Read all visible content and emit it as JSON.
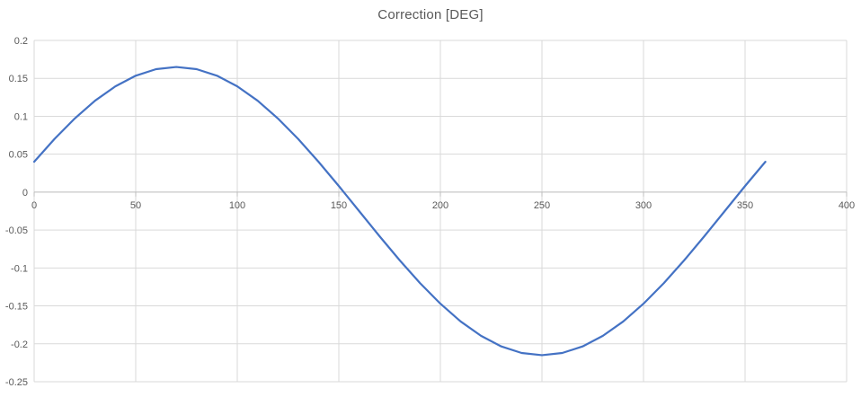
{
  "chart_data": {
    "type": "line",
    "title": "Correction [DEG]",
    "xlabel": "",
    "ylabel": "",
    "xlim": [
      0,
      400
    ],
    "ylim": [
      -0.25,
      0.2
    ],
    "x_ticks": [
      0,
      50,
      100,
      150,
      200,
      250,
      300,
      350,
      400
    ],
    "y_ticks": [
      0.2,
      0.15,
      0.1,
      0.05,
      0,
      -0.05,
      -0.1,
      -0.15,
      -0.2,
      -0.25
    ],
    "grid": true,
    "legend_position": "none",
    "series": [
      {
        "name": "Correction",
        "x": [
          0,
          10,
          20,
          30,
          40,
          50,
          60,
          70,
          80,
          90,
          100,
          110,
          120,
          130,
          140,
          150,
          160,
          170,
          180,
          190,
          200,
          210,
          220,
          230,
          240,
          250,
          260,
          270,
          280,
          290,
          300,
          310,
          320,
          330,
          340,
          350,
          360
        ],
        "y": [
          0.04,
          0.07,
          0.0971,
          0.1206,
          0.1395,
          0.1535,
          0.1621,
          0.165,
          0.1621,
          0.1535,
          0.1395,
          0.1206,
          0.0971,
          0.07,
          0.04,
          0.008,
          -0.025,
          -0.058,
          -0.09,
          -0.12,
          -0.1471,
          -0.1706,
          -0.1895,
          -0.2035,
          -0.2121,
          -0.215,
          -0.2121,
          -0.2035,
          -0.1895,
          -0.1706,
          -0.1471,
          -0.12,
          -0.09,
          -0.058,
          -0.025,
          0.008,
          0.04
        ]
      }
    ],
    "colors": {
      "line": "#4472C4",
      "gridline": "#D9D9D9",
      "axis_line": "#BFBFBF",
      "tick_text": "#595959",
      "title_text": "#595959",
      "background": "#FFFFFF"
    }
  }
}
